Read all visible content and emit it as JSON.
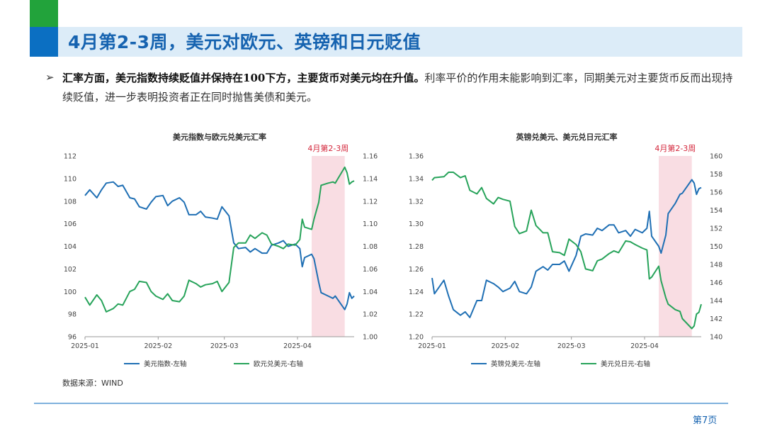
{
  "header": {
    "title": "4月第2-3周，美元对欧元、英镑和日元贬值",
    "accent_green": "#22a33b",
    "accent_blue": "#0b6fc2"
  },
  "body": {
    "bullet": "➢",
    "bold_text": "汇率方面，美元指数持续贬值并保持在100下方，主要货币对美元均在升值。",
    "normal_text": "利率平价的作用未能影响到汇率，同期美元对主要货币反而出现持续贬值，进一步表明投资者正在同时抛售美债和美元。"
  },
  "source": "数据来源：WIND",
  "page": "第7页",
  "chart_data": [
    {
      "type": "line",
      "title": "美元指数与欧元兑美元汇率",
      "highlight_label": "4月第2-3周",
      "highlight_range": [
        "2025-04-07",
        "2025-04-21"
      ],
      "x_ticks": [
        "2025-01",
        "2025-02",
        "2025-03",
        "2025-04"
      ],
      "left_ticks": [
        "96",
        "98",
        "100",
        "102",
        "104",
        "106",
        "108",
        "110",
        "112"
      ],
      "right_ticks": [
        "1.00",
        "1.02",
        "1.04",
        "1.06",
        "1.08",
        "1.10",
        "1.12",
        "1.14",
        "1.16"
      ],
      "ylim_left": [
        96,
        112
      ],
      "ylim_right": [
        1.0,
        1.16
      ],
      "x_range": [
        "2025-01-01",
        "2025-04-25"
      ],
      "legend_position": "bottom",
      "series": [
        {
          "name": "美元指数-左轴",
          "axis": "left",
          "color": "#1f6fb4",
          "points": [
            [
              "2025-01-01",
              108.5
            ],
            [
              "2025-01-03",
              109.0
            ],
            [
              "2025-01-06",
              108.3
            ],
            [
              "2025-01-08",
              109.0
            ],
            [
              "2025-01-10",
              109.6
            ],
            [
              "2025-01-13",
              109.7
            ],
            [
              "2025-01-15",
              109.3
            ],
            [
              "2025-01-17",
              109.4
            ],
            [
              "2025-01-20",
              108.3
            ],
            [
              "2025-01-22",
              108.2
            ],
            [
              "2025-01-24",
              107.5
            ],
            [
              "2025-01-27",
              107.3
            ],
            [
              "2025-01-29",
              107.9
            ],
            [
              "2025-01-31",
              108.4
            ],
            [
              "2025-02-03",
              108.5
            ],
            [
              "2025-02-05",
              107.6
            ],
            [
              "2025-02-07",
              108.0
            ],
            [
              "2025-02-10",
              108.3
            ],
            [
              "2025-02-12",
              107.9
            ],
            [
              "2025-02-14",
              106.8
            ],
            [
              "2025-02-17",
              106.8
            ],
            [
              "2025-02-19",
              107.1
            ],
            [
              "2025-02-21",
              106.6
            ],
            [
              "2025-02-24",
              106.5
            ],
            [
              "2025-02-26",
              106.4
            ],
            [
              "2025-02-28",
              107.5
            ],
            [
              "2025-03-03",
              106.7
            ],
            [
              "2025-03-05",
              104.3
            ],
            [
              "2025-03-07",
              103.8
            ],
            [
              "2025-03-10",
              103.9
            ],
            [
              "2025-03-12",
              103.5
            ],
            [
              "2025-03-14",
              103.8
            ],
            [
              "2025-03-17",
              103.4
            ],
            [
              "2025-03-19",
              103.4
            ],
            [
              "2025-03-21",
              104.1
            ],
            [
              "2025-03-24",
              104.3
            ],
            [
              "2025-03-26",
              104.5
            ],
            [
              "2025-03-28",
              104.0
            ],
            [
              "2025-03-31",
              104.2
            ],
            [
              "2025-04-02",
              103.8
            ],
            [
              "2025-04-03",
              102.2
            ],
            [
              "2025-04-04",
              103.0
            ],
            [
              "2025-04-07",
              103.3
            ],
            [
              "2025-04-08",
              102.9
            ],
            [
              "2025-04-10",
              100.8
            ],
            [
              "2025-04-11",
              99.9
            ],
            [
              "2025-04-14",
              99.6
            ],
            [
              "2025-04-16",
              99.4
            ],
            [
              "2025-04-17",
              99.6
            ],
            [
              "2025-04-21",
              98.4
            ],
            [
              "2025-04-22",
              98.9
            ],
            [
              "2025-04-23",
              99.9
            ],
            [
              "2025-04-24",
              99.4
            ],
            [
              "2025-04-25",
              99.6
            ]
          ]
        },
        {
          "name": "欧元兑美元-右轴",
          "axis": "right",
          "color": "#27a35a",
          "points": [
            [
              "2025-01-01",
              1.035
            ],
            [
              "2025-01-03",
              1.028
            ],
            [
              "2025-01-06",
              1.037
            ],
            [
              "2025-01-08",
              1.032
            ],
            [
              "2025-01-10",
              1.022
            ],
            [
              "2025-01-13",
              1.025
            ],
            [
              "2025-01-15",
              1.029
            ],
            [
              "2025-01-17",
              1.028
            ],
            [
              "2025-01-20",
              1.04
            ],
            [
              "2025-01-22",
              1.042
            ],
            [
              "2025-01-24",
              1.049
            ],
            [
              "2025-01-27",
              1.048
            ],
            [
              "2025-01-29",
              1.04
            ],
            [
              "2025-01-31",
              1.036
            ],
            [
              "2025-02-03",
              1.033
            ],
            [
              "2025-02-05",
              1.038
            ],
            [
              "2025-02-07",
              1.032
            ],
            [
              "2025-02-10",
              1.031
            ],
            [
              "2025-02-12",
              1.036
            ],
            [
              "2025-02-14",
              1.05
            ],
            [
              "2025-02-17",
              1.047
            ],
            [
              "2025-02-19",
              1.044
            ],
            [
              "2025-02-21",
              1.046
            ],
            [
              "2025-02-24",
              1.047
            ],
            [
              "2025-02-26",
              1.049
            ],
            [
              "2025-02-28",
              1.04
            ],
            [
              "2025-03-03",
              1.048
            ],
            [
              "2025-03-05",
              1.079
            ],
            [
              "2025-03-07",
              1.083
            ],
            [
              "2025-03-10",
              1.083
            ],
            [
              "2025-03-12",
              1.09
            ],
            [
              "2025-03-14",
              1.087
            ],
            [
              "2025-03-17",
              1.092
            ],
            [
              "2025-03-19",
              1.09
            ],
            [
              "2025-03-21",
              1.082
            ],
            [
              "2025-03-24",
              1.08
            ],
            [
              "2025-03-26",
              1.078
            ],
            [
              "2025-03-28",
              1.082
            ],
            [
              "2025-03-31",
              1.081
            ],
            [
              "2025-04-02",
              1.086
            ],
            [
              "2025-04-03",
              1.104
            ],
            [
              "2025-04-04",
              1.097
            ],
            [
              "2025-04-07",
              1.095
            ],
            [
              "2025-04-08",
              1.104
            ],
            [
              "2025-04-10",
              1.119
            ],
            [
              "2025-04-11",
              1.134
            ],
            [
              "2025-04-14",
              1.136
            ],
            [
              "2025-04-16",
              1.137
            ],
            [
              "2025-04-17",
              1.136
            ],
            [
              "2025-04-21",
              1.15
            ],
            [
              "2025-04-22",
              1.145
            ],
            [
              "2025-04-23",
              1.135
            ],
            [
              "2025-04-24",
              1.137
            ],
            [
              "2025-04-25",
              1.138
            ]
          ]
        }
      ]
    },
    {
      "type": "line",
      "title": "英镑兑美元、美元兑日元汇率",
      "highlight_label": "4月第2-3周",
      "highlight_range": [
        "2025-04-07",
        "2025-04-21"
      ],
      "x_ticks": [
        "2025-01",
        "2025-02",
        "2025-03",
        "2025-04"
      ],
      "left_ticks": [
        "1.20",
        "1.22",
        "1.24",
        "1.26",
        "1.28",
        "1.30",
        "1.32",
        "1.34",
        "1.36"
      ],
      "right_ticks": [
        "140",
        "142",
        "144",
        "146",
        "148",
        "150",
        "152",
        "154",
        "156",
        "158",
        "160"
      ],
      "ylim_left": [
        1.2,
        1.36
      ],
      "ylim_right": [
        140,
        160
      ],
      "x_range": [
        "2025-01-01",
        "2025-04-25"
      ],
      "legend_position": "bottom",
      "series": [
        {
          "name": "英镑兑美元-左轴",
          "axis": "left",
          "color": "#1f6fb4",
          "points": [
            [
              "2025-01-01",
              1.252
            ],
            [
              "2025-01-02",
              1.238
            ],
            [
              "2025-01-06",
              1.25
            ],
            [
              "2025-01-08",
              1.236
            ],
            [
              "2025-01-10",
              1.224
            ],
            [
              "2025-01-13",
              1.219
            ],
            [
              "2025-01-15",
              1.222
            ],
            [
              "2025-01-17",
              1.217
            ],
            [
              "2025-01-20",
              1.232
            ],
            [
              "2025-01-22",
              1.232
            ],
            [
              "2025-01-24",
              1.25
            ],
            [
              "2025-01-27",
              1.247
            ],
            [
              "2025-01-29",
              1.244
            ],
            [
              "2025-01-31",
              1.24
            ],
            [
              "2025-02-03",
              1.243
            ],
            [
              "2025-02-05",
              1.249
            ],
            [
              "2025-02-07",
              1.24
            ],
            [
              "2025-02-10",
              1.238
            ],
            [
              "2025-02-12",
              1.244
            ],
            [
              "2025-02-14",
              1.258
            ],
            [
              "2025-02-17",
              1.262
            ],
            [
              "2025-02-19",
              1.259
            ],
            [
              "2025-02-21",
              1.264
            ],
            [
              "2025-02-24",
              1.264
            ],
            [
              "2025-02-26",
              1.267
            ],
            [
              "2025-02-28",
              1.258
            ],
            [
              "2025-03-03",
              1.272
            ],
            [
              "2025-03-05",
              1.289
            ],
            [
              "2025-03-07",
              1.291
            ],
            [
              "2025-03-10",
              1.29
            ],
            [
              "2025-03-12",
              1.296
            ],
            [
              "2025-03-14",
              1.294
            ],
            [
              "2025-03-17",
              1.299
            ],
            [
              "2025-03-19",
              1.299
            ],
            [
              "2025-03-21",
              1.292
            ],
            [
              "2025-03-24",
              1.294
            ],
            [
              "2025-03-26",
              1.289
            ],
            [
              "2025-03-28",
              1.295
            ],
            [
              "2025-03-31",
              1.292
            ],
            [
              "2025-04-02",
              1.296
            ],
            [
              "2025-04-03",
              1.311
            ],
            [
              "2025-04-04",
              1.289
            ],
            [
              "2025-04-07",
              1.28
            ],
            [
              "2025-04-08",
              1.274
            ],
            [
              "2025-04-10",
              1.29
            ],
            [
              "2025-04-11",
              1.309
            ],
            [
              "2025-04-14",
              1.318
            ],
            [
              "2025-04-16",
              1.326
            ],
            [
              "2025-04-17",
              1.327
            ],
            [
              "2025-04-21",
              1.339
            ],
            [
              "2025-04-22",
              1.336
            ],
            [
              "2025-04-23",
              1.326
            ],
            [
              "2025-04-24",
              1.331
            ],
            [
              "2025-04-25",
              1.332
            ]
          ]
        },
        {
          "name": "美元兑日元-右轴",
          "axis": "right",
          "color": "#27a35a",
          "points": [
            [
              "2025-01-01",
              157.3
            ],
            [
              "2025-01-02",
              157.6
            ],
            [
              "2025-01-06",
              157.7
            ],
            [
              "2025-01-08",
              158.2
            ],
            [
              "2025-01-10",
              158.2
            ],
            [
              "2025-01-13",
              157.6
            ],
            [
              "2025-01-15",
              157.8
            ],
            [
              "2025-01-17",
              156.2
            ],
            [
              "2025-01-20",
              155.8
            ],
            [
              "2025-01-22",
              156.5
            ],
            [
              "2025-01-24",
              155.3
            ],
            [
              "2025-01-27",
              154.7
            ],
            [
              "2025-01-29",
              155.4
            ],
            [
              "2025-01-31",
              155.2
            ],
            [
              "2025-02-03",
              155.0
            ],
            [
              "2025-02-05",
              152.2
            ],
            [
              "2025-02-07",
              151.4
            ],
            [
              "2025-02-10",
              151.7
            ],
            [
              "2025-02-12",
              154.0
            ],
            [
              "2025-02-14",
              152.3
            ],
            [
              "2025-02-17",
              151.5
            ],
            [
              "2025-02-19",
              151.5
            ],
            [
              "2025-02-21",
              149.4
            ],
            [
              "2025-02-24",
              149.3
            ],
            [
              "2025-02-26",
              149.0
            ],
            [
              "2025-02-28",
              150.8
            ],
            [
              "2025-03-03",
              150.2
            ],
            [
              "2025-03-05",
              149.4
            ],
            [
              "2025-03-07",
              147.5
            ],
            [
              "2025-03-10",
              147.3
            ],
            [
              "2025-03-12",
              148.4
            ],
            [
              "2025-03-14",
              148.6
            ],
            [
              "2025-03-17",
              149.2
            ],
            [
              "2025-03-19",
              149.5
            ],
            [
              "2025-03-21",
              149.3
            ],
            [
              "2025-03-24",
              150.6
            ],
            [
              "2025-03-26",
              150.5
            ],
            [
              "2025-03-28",
              150.2
            ],
            [
              "2025-03-31",
              149.8
            ],
            [
              "2025-04-02",
              149.6
            ],
            [
              "2025-04-03",
              146.4
            ],
            [
              "2025-04-04",
              146.6
            ],
            [
              "2025-04-07",
              147.8
            ],
            [
              "2025-04-08",
              146.2
            ],
            [
              "2025-04-10",
              144.3
            ],
            [
              "2025-04-11",
              143.6
            ],
            [
              "2025-04-14",
              143.0
            ],
            [
              "2025-04-16",
              142.8
            ],
            [
              "2025-04-17",
              142.0
            ],
            [
              "2025-04-21",
              140.9
            ],
            [
              "2025-04-22",
              141.2
            ],
            [
              "2025-04-23",
              142.5
            ],
            [
              "2025-04-24",
              142.7
            ],
            [
              "2025-04-25",
              143.6
            ]
          ]
        }
      ]
    }
  ]
}
